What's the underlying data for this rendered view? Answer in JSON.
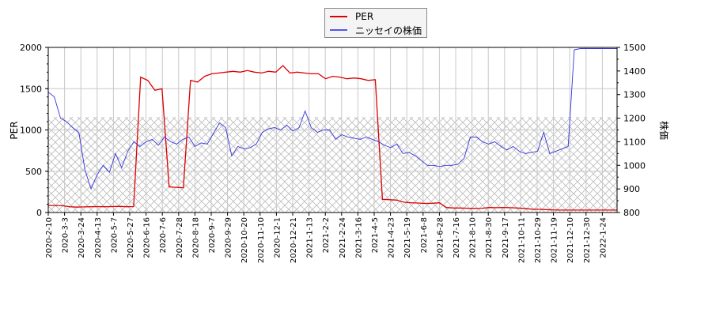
{
  "chart_data": {
    "type": "line",
    "title": "",
    "xlabel": "",
    "ylabel": "PER",
    "ylabel_right": "株価",
    "ylim": [
      0,
      2000
    ],
    "ylim_right": [
      800,
      1500
    ],
    "yticks": [
      "0",
      "500",
      "1000",
      "1500",
      "2000"
    ],
    "yticks_right": [
      "800",
      "900",
      "1000",
      "1100",
      "1200",
      "1300",
      "1400",
      "1500"
    ],
    "grid": true,
    "legend_position": "top-center",
    "x_ticks": [
      "2020-2-10",
      "2020-3-3",
      "2020-3-24",
      "2020-4-13",
      "2020-5-7",
      "2020-5-27",
      "2020-6-16",
      "2020-7-6",
      "2020-7-28",
      "2020-8-18",
      "2020-9-7",
      "2020-9-29",
      "2020-10-20",
      "2020-11-10",
      "2020-12-1",
      "2020-12-21",
      "2021-1-13",
      "2021-2-2",
      "2021-2-24",
      "2021-3-16",
      "2021-4-5",
      "2021-4-23",
      "2021-5-19",
      "2021-6-8",
      "2021-6-28",
      "2021-7-16",
      "2021-8-10",
      "2021-8-30",
      "2021-9-17",
      "2021-10-11",
      "2021-10-29",
      "2021-11-19",
      "2021-12-10",
      "2021-12-30",
      "2022-1-24"
    ],
    "series": [
      {
        "name": "PER",
        "color": "#dd0000",
        "axis": "left",
        "values": [
          85,
          85,
          82,
          70,
          65,
          68,
          70,
          72,
          70,
          72,
          75,
          70,
          72,
          1640,
          1600,
          1480,
          1500,
          310,
          305,
          300,
          1600,
          1580,
          1650,
          1680,
          1690,
          1700,
          1710,
          1700,
          1720,
          1700,
          1690,
          1710,
          1700,
          1780,
          1690,
          1700,
          1690,
          1680,
          1680,
          1620,
          1650,
          1640,
          1620,
          1630,
          1620,
          1600,
          1610,
          160,
          155,
          150,
          125,
          118,
          115,
          110,
          112,
          118,
          60,
          55,
          55,
          52,
          50,
          52,
          60,
          58,
          60,
          58,
          55,
          50,
          40,
          38,
          35,
          32,
          30,
          30,
          30,
          30,
          30,
          30,
          30,
          30,
          30
        ]
      },
      {
        "name": "ニッセイの株価",
        "color": "#3333dd",
        "axis": "right",
        "values": [
          1310,
          1290,
          1200,
          1185,
          1160,
          1140,
          980,
          900,
          960,
          1000,
          970,
          1050,
          990,
          1060,
          1100,
          1080,
          1100,
          1110,
          1085,
          1120,
          1100,
          1090,
          1110,
          1120,
          1080,
          1095,
          1090,
          1135,
          1180,
          1160,
          1040,
          1080,
          1070,
          1075,
          1090,
          1140,
          1155,
          1160,
          1150,
          1170,
          1145,
          1160,
          1230,
          1160,
          1140,
          1150,
          1150,
          1110,
          1130,
          1120,
          1115,
          1110,
          1120,
          1110,
          1100,
          1085,
          1075,
          1090,
          1050,
          1055,
          1040,
          1020,
          1000,
          1000,
          995,
          1000,
          1000,
          1005,
          1030,
          1120,
          1120,
          1100,
          1090,
          1100,
          1080,
          1065,
          1080,
          1060,
          1050,
          1055,
          1060,
          1140,
          1050,
          1060,
          1070,
          1080,
          1490,
          1495,
          1495,
          1495,
          1495,
          1495,
          1495,
          1495
        ]
      }
    ]
  },
  "legend": {
    "items": [
      {
        "label": "PER",
        "color": "#dd0000"
      },
      {
        "label": "ニッセイの株価",
        "color": "#5555ee"
      }
    ]
  },
  "axes": {
    "left_label": "PER",
    "right_label": "株価"
  }
}
